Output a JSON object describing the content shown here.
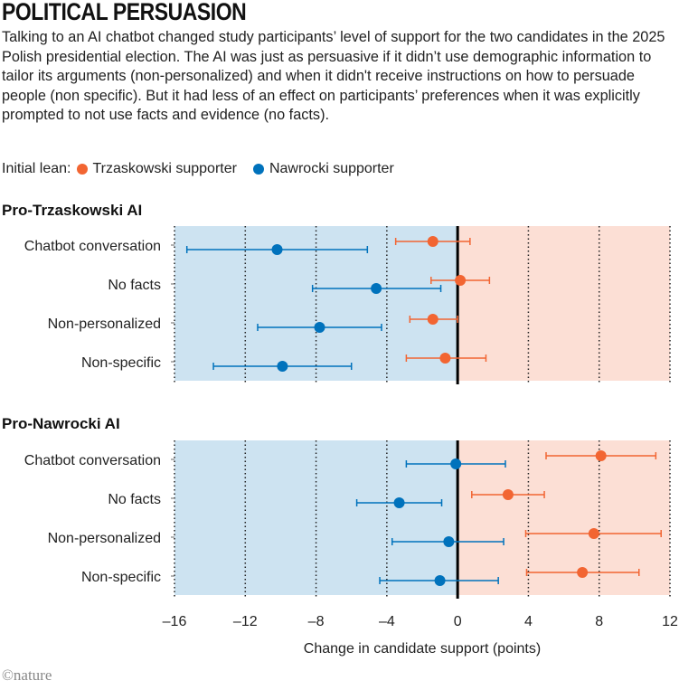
{
  "title": "POLITICAL PERSUASION",
  "subtitle": "Talking to an AI chatbot changed study participants’ level of support for the two candidates in the 2025 Polish presidential election. The AI was just as persuasive if it didn’t use demographic information to tailor its arguments (non-personalized) and when it didn't receive instructions on how to persuade people (non specific). But it had less of an effect on participants’ preferences when it was explicitly prompted to not use facts and evidence (no facts).",
  "legend": {
    "label": "Initial lean:",
    "items": [
      {
        "name": "Trzaskowski supporter",
        "color": "#f26532"
      },
      {
        "name": "Nawrocki supporter",
        "color": "#0072bc"
      }
    ]
  },
  "logo": "©nature",
  "colors": {
    "blue_region": "#cde3f1",
    "orange_region": "#fcdfd5",
    "trzaskowski": "#f26532",
    "nawrocki": "#0072bc"
  },
  "chart_data": {
    "type": "dot-errorbar",
    "xlabel": "Change in candidate support (points)",
    "xlim": [
      -16,
      12
    ],
    "xticks": [
      "–16",
      "–12",
      "–8",
      "–4",
      "0",
      "4",
      "8",
      "12"
    ],
    "xtick_values": [
      -16,
      -12,
      -8,
      -4,
      0,
      4,
      8,
      12
    ],
    "grid": "vertical dotted",
    "categories": [
      "Chatbot conversation",
      "No facts",
      "Non-personalized",
      "Non-specific"
    ],
    "panels": [
      {
        "title": "Pro-Trzaskowski AI",
        "series": [
          {
            "name": "Trzaskowski supporter",
            "values": [
              -1.4,
              0.15,
              -1.4,
              -0.7
            ],
            "lower": [
              -3.5,
              -1.5,
              -2.7,
              -2.9
            ],
            "upper": [
              0.7,
              1.8,
              0,
              1.6
            ]
          },
          {
            "name": "Nawrocki supporter",
            "values": [
              -10.2,
              -4.6,
              -7.8,
              -9.9
            ],
            "lower": [
              -15.3,
              -8.2,
              -11.3,
              -13.8
            ],
            "upper": [
              -5.1,
              -0.95,
              -4.3,
              -6.0
            ]
          }
        ]
      },
      {
        "title": "Pro-Nawrocki AI",
        "series": [
          {
            "name": "Trzaskowski supporter",
            "values": [
              8.1,
              2.85,
              7.7,
              7.05
            ],
            "lower": [
              5.0,
              0.8,
              3.85,
              3.9
            ],
            "upper": [
              11.2,
              4.9,
              11.5,
              10.25
            ]
          },
          {
            "name": "Nawrocki supporter",
            "values": [
              -0.1,
              -3.3,
              -0.5,
              -1.0
            ],
            "lower": [
              -2.9,
              -5.7,
              -3.7,
              -4.4
            ],
            "upper": [
              2.7,
              -0.9,
              2.6,
              2.3
            ]
          }
        ]
      }
    ]
  }
}
